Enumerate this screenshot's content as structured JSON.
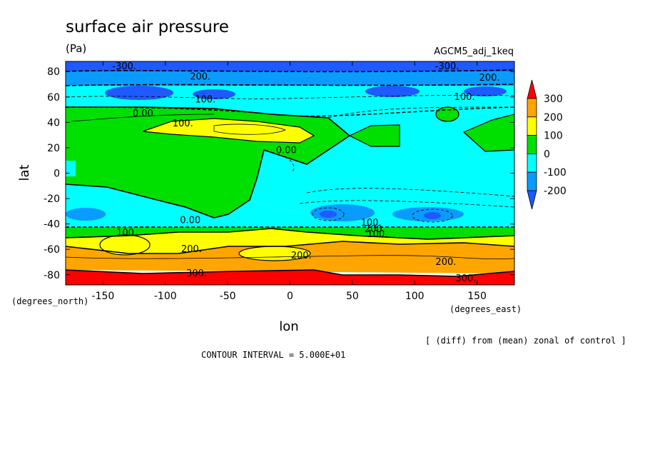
{
  "title": "surface air pressure",
  "units": "(Pa)",
  "run_name": "AGCM5_adj_1keq",
  "footnote": "[ (diff) from (mean) zonal of control ]",
  "contour_interval": "CONTOUR INTERVAL = 5.000E+01",
  "chart_data": {
    "type": "heatmap",
    "title": "surface air pressure",
    "units": "(Pa)",
    "xlabel": "lon",
    "ylabel": "lat",
    "x_units": "(degrees_east)",
    "y_units": "(degrees_north)",
    "xlim": [
      -180,
      180
    ],
    "ylim": [
      -88,
      88
    ],
    "x_ticks": [
      -150,
      -100,
      -50,
      0,
      50,
      100,
      150
    ],
    "x_tick_labels": [
      "-150",
      "-100",
      "-50",
      "0",
      "50",
      "100",
      "150"
    ],
    "y_ticks": [
      80,
      60,
      40,
      20,
      0,
      -20,
      -40,
      -60,
      -80
    ],
    "y_tick_labels": [
      "80",
      "60",
      "40",
      "20",
      "0",
      "-20",
      "-40",
      "-60",
      "-80"
    ],
    "contour_interval": 50,
    "colorbar": {
      "ticks": [
        300,
        200,
        100,
        0,
        -100,
        -200
      ],
      "tick_labels": [
        "300",
        "200",
        "100",
        "0",
        "-100",
        "-200"
      ],
      "bins": [
        {
          "range": [
            300,
            400
          ],
          "color": "#ff0000"
        },
        {
          "range": [
            200,
            300
          ],
          "color": "#ffa500"
        },
        {
          "range": [
            100,
            200
          ],
          "color": "#ffff00"
        },
        {
          "range": [
            0,
            100
          ],
          "color": "#00e000"
        },
        {
          "range": [
            -100,
            0
          ],
          "color": "#00ffff"
        },
        {
          "range": [
            -200,
            -100
          ],
          "color": "#0a9bff"
        },
        {
          "range": [
            -300,
            -200
          ],
          "color": "#1e5aff"
        }
      ]
    },
    "zonal_bands": [
      {
        "lat_range": [
          80,
          88
        ],
        "value": -300
      },
      {
        "lat_range": [
          70,
          80
        ],
        "value": -250
      },
      {
        "lat_range": [
          55,
          70
        ],
        "value": -150
      },
      {
        "lat_range": [
          45,
          55
        ],
        "value": -50
      },
      {
        "lat_range": [
          -25,
          45
        ],
        "value": -50
      },
      {
        "lat_range": [
          -45,
          -25
        ],
        "value": -100
      },
      {
        "lat_range": [
          -52,
          -45
        ],
        "value": 50
      },
      {
        "lat_range": [
          -62,
          -52
        ],
        "value": 150
      },
      {
        "lat_range": [
          -77,
          -62
        ],
        "value": 250
      },
      {
        "lat_range": [
          -88,
          -77
        ],
        "value": 350
      }
    ],
    "contour_labels": [
      {
        "text": "-300.",
        "lon": -133,
        "lat": 84
      },
      {
        "text": "200.",
        "lon": -72,
        "lat": 76
      },
      {
        "text": "-300.",
        "lon": 126,
        "lat": 84
      },
      {
        "text": "200.",
        "lon": 160,
        "lat": 75
      },
      {
        "text": "100.",
        "lon": -68,
        "lat": 58
      },
      {
        "text": "100.",
        "lon": 140,
        "lat": 60
      },
      {
        "text": "0.00",
        "lon": -118,
        "lat": 47
      },
      {
        "text": "100.",
        "lon": -86,
        "lat": 39
      },
      {
        "text": "0.00",
        "lon": -3,
        "lat": 18
      },
      {
        "text": "0.00",
        "lon": -80,
        "lat": -37
      },
      {
        "text": "100.",
        "lon": -131,
        "lat": -47
      },
      {
        "text": "100.",
        "lon": 65,
        "lat": -39
      },
      {
        "text": "200.",
        "lon": 68,
        "lat": -44
      },
      {
        "text": "100.",
        "lon": 70,
        "lat": -48
      },
      {
        "text": "200.",
        "lon": -79,
        "lat": -60
      },
      {
        "text": "200.",
        "lon": 9,
        "lat": -65
      },
      {
        "text": "200.",
        "lon": 125,
        "lat": -70
      },
      {
        "text": "300.",
        "lon": -75,
        "lat": -79
      },
      {
        "text": "300.",
        "lon": 141,
        "lat": -83
      }
    ]
  }
}
